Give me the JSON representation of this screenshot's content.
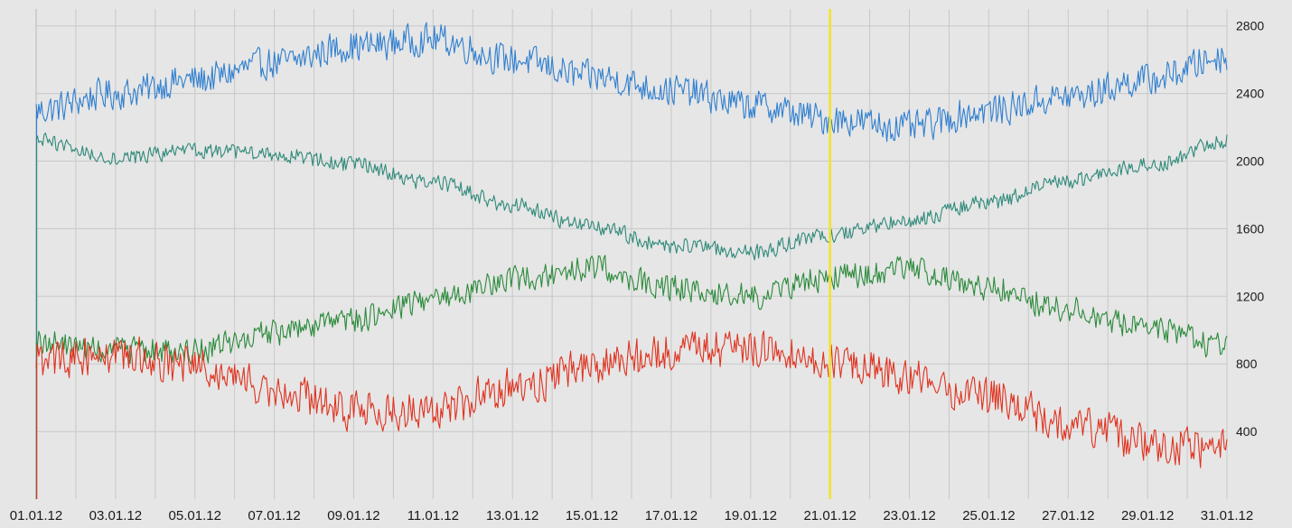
{
  "chart_data": {
    "type": "line",
    "title": "",
    "xlabel": "",
    "ylabel": "",
    "x_tick_labels": [
      "01.01.12",
      "03.01.12",
      "05.01.12",
      "07.01.12",
      "09.01.12",
      "11.01.12",
      "13.01.12",
      "15.01.12",
      "17.01.12",
      "19.01.12",
      "21.01.12",
      "23.01.12",
      "25.01.12",
      "27.01.12",
      "29.01.12",
      "31.01.12"
    ],
    "y_tick_labels": [
      "400",
      "800",
      "1200",
      "1600",
      "2000",
      "2400",
      "2800"
    ],
    "y_ticks": [
      400,
      800,
      1200,
      1600,
      2000,
      2400,
      2800
    ],
    "ylim": [
      0,
      2900
    ],
    "xlim": [
      "01.01.12",
      "31.01.12"
    ],
    "y_axis_side": "right",
    "grid": true,
    "legend": "none",
    "background_color": "#e6e6e6",
    "grid_color": "#c8c8c8",
    "cursor": {
      "x": "21.01.12",
      "color": "#f2e22a"
    },
    "series": [
      {
        "color": "#2f7fd0",
        "x": [
          "01.01.12",
          "03.01.12",
          "05.01.12",
          "07.01.12",
          "09.01.12",
          "11.01.12",
          "13.01.12",
          "15.01.12",
          "17.01.12",
          "19.01.12",
          "21.01.12",
          "23.01.12",
          "25.01.12",
          "27.01.12",
          "29.01.12",
          "31.01.12"
        ],
        "values": [
          2300,
          2400,
          2480,
          2580,
          2680,
          2720,
          2600,
          2500,
          2420,
          2330,
          2250,
          2200,
          2300,
          2380,
          2480,
          2620
        ],
        "noise": 90
      },
      {
        "color": "#2f8a7a",
        "x": [
          "01.01.12",
          "03.01.12",
          "05.01.12",
          "07.01.12",
          "09.01.12",
          "11.01.12",
          "13.01.12",
          "15.01.12",
          "17.01.12",
          "19.01.12",
          "21.01.12",
          "23.01.12",
          "25.01.12",
          "27.01.12",
          "29.01.12",
          "31.01.12"
        ],
        "values": [
          2120,
          2020,
          2060,
          2040,
          1980,
          1870,
          1740,
          1610,
          1500,
          1460,
          1560,
          1650,
          1760,
          1880,
          1980,
          2120
        ],
        "noise": 45
      },
      {
        "color": "#2a8a3a",
        "x": [
          "01.01.12",
          "03.01.12",
          "05.01.12",
          "07.01.12",
          "09.01.12",
          "11.01.12",
          "13.01.12",
          "15.01.12",
          "17.01.12",
          "19.01.12",
          "21.01.12",
          "23.01.12",
          "25.01.12",
          "27.01.12",
          "29.01.12",
          "31.01.12"
        ],
        "values": [
          930,
          880,
          880,
          980,
          1060,
          1190,
          1300,
          1370,
          1250,
          1200,
          1310,
          1360,
          1250,
          1120,
          1010,
          900
        ],
        "noise": 75
      },
      {
        "color": "#e0321f",
        "x": [
          "01.01.12",
          "03.01.12",
          "05.01.12",
          "07.01.12",
          "09.01.12",
          "11.01.12",
          "13.01.12",
          "15.01.12",
          "17.01.12",
          "19.01.12",
          "21.01.12",
          "23.01.12",
          "25.01.12",
          "27.01.12",
          "29.01.12",
          "31.01.12"
        ],
        "values": [
          820,
          860,
          780,
          660,
          520,
          530,
          660,
          780,
          870,
          900,
          820,
          720,
          600,
          460,
          330,
          290
        ],
        "noise": 110
      }
    ]
  }
}
